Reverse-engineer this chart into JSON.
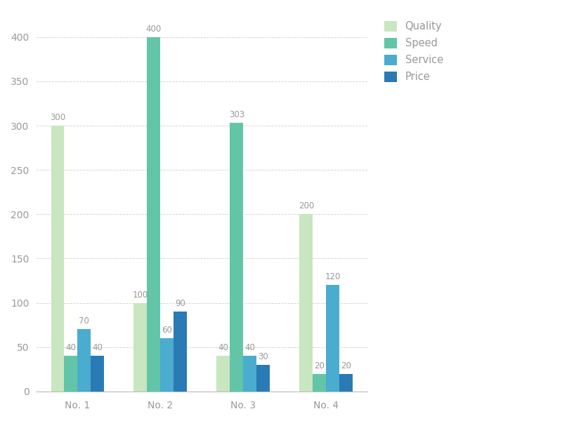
{
  "categories": [
    "No. 1",
    "No. 2",
    "No. 3",
    "No. 4"
  ],
  "series": [
    {
      "label": "Quality",
      "color": "#c8e6c0",
      "values": [
        300,
        100,
        40,
        200
      ]
    },
    {
      "label": "Speed",
      "color": "#63c5a8",
      "values": [
        40,
        400,
        303,
        20
      ]
    },
    {
      "label": "Service",
      "color": "#4aaccf",
      "values": [
        70,
        60,
        40,
        120
      ]
    },
    {
      "label": "Price",
      "color": "#2a7ab5",
      "values": [
        40,
        90,
        30,
        20
      ]
    }
  ],
  "ylim": [
    0,
    430
  ],
  "yticks": [
    0,
    50,
    100,
    150,
    200,
    250,
    300,
    350,
    400
  ],
  "ylabel": "",
  "xlabel": "",
  "title": "",
  "bar_width": 0.16,
  "label_fontsize": 8.5,
  "tick_fontsize": 10,
  "legend_fontsize": 10.5,
  "background_color": "#ffffff",
  "grid_color": "#d0d0d0",
  "annotation_color": "#999999",
  "tick_color": "#999999"
}
